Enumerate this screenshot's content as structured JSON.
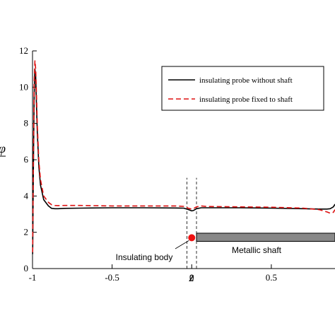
{
  "chart_data": {
    "type": "line",
    "xlabel": "z",
    "ylabel_partial": "φ",
    "xlim": [
      -1,
      0.9
    ],
    "ylim": [
      0,
      12
    ],
    "x_ticks": [
      -1,
      -0.5,
      0,
      0.5
    ],
    "x_tick_labels": [
      "-1",
      "-0.5",
      "0",
      "0.5"
    ],
    "y_ticks": [
      0,
      2,
      4,
      6,
      8,
      10,
      12
    ],
    "y_tick_labels": [
      "0",
      "2",
      "4",
      "6",
      "8",
      "10",
      "12"
    ],
    "grid": false,
    "legend_position": "top-right",
    "series": [
      {
        "name": "insulating probe without shaft",
        "color": "#000000",
        "dash": "solid",
        "x": [
          -0.999,
          -0.995,
          -0.99,
          -0.985,
          -0.98,
          -0.975,
          -0.97,
          -0.96,
          -0.95,
          -0.93,
          -0.9,
          -0.88,
          -0.86,
          -0.84,
          -0.8,
          -0.7,
          -0.5,
          -0.3,
          -0.1,
          -0.05,
          -0.02,
          0.0,
          0.01,
          0.03,
          0.06,
          0.1,
          0.3,
          0.5,
          0.7,
          0.8,
          0.85,
          0.87,
          0.89,
          0.9
        ],
        "y": [
          0.8,
          5.0,
          9.5,
          11.0,
          10.6,
          9.0,
          7.5,
          5.6,
          4.6,
          3.8,
          3.45,
          3.32,
          3.3,
          3.3,
          3.32,
          3.33,
          3.35,
          3.35,
          3.34,
          3.33,
          3.25,
          3.18,
          3.2,
          3.3,
          3.35,
          3.35,
          3.35,
          3.33,
          3.3,
          3.28,
          3.28,
          3.3,
          3.4,
          3.55
        ]
      },
      {
        "name": "insulating probe fixed to shaft",
        "color": "#dd1111",
        "dash": "dashed",
        "x": [
          -0.999,
          -0.995,
          -0.99,
          -0.985,
          -0.98,
          -0.975,
          -0.97,
          -0.96,
          -0.95,
          -0.93,
          -0.9,
          -0.88,
          -0.86,
          -0.84,
          -0.8,
          -0.7,
          -0.5,
          -0.3,
          -0.1,
          -0.05,
          -0.02,
          0.0,
          0.01,
          0.03,
          0.06,
          0.1,
          0.3,
          0.5,
          0.7,
          0.8,
          0.85,
          0.87,
          0.89,
          0.9
        ],
        "y": [
          0.9,
          5.5,
          10.2,
          11.45,
          11.0,
          9.6,
          7.9,
          5.9,
          4.9,
          4.0,
          3.65,
          3.52,
          3.48,
          3.47,
          3.48,
          3.48,
          3.45,
          3.45,
          3.45,
          3.43,
          3.32,
          3.28,
          3.3,
          3.4,
          3.45,
          3.42,
          3.4,
          3.38,
          3.33,
          3.25,
          3.12,
          3.05,
          3.1,
          3.25
        ]
      }
    ],
    "annotations": {
      "insulating_body_label": "Insulating body",
      "metallic_shaft_label": "Metallic shaft",
      "body_marker_color": "#ee1111",
      "shaft_color": "#888888",
      "body_marker": {
        "x": 0.0,
        "y": 1.7
      },
      "shaft_range": {
        "x_start": 0.03,
        "x_end": 0.9,
        "y_bottom": 1.5,
        "y_top": 1.95
      },
      "guide_lines_x": [
        -0.03,
        0.03
      ],
      "guide_lines_y_range": [
        0,
        5.0
      ]
    }
  }
}
